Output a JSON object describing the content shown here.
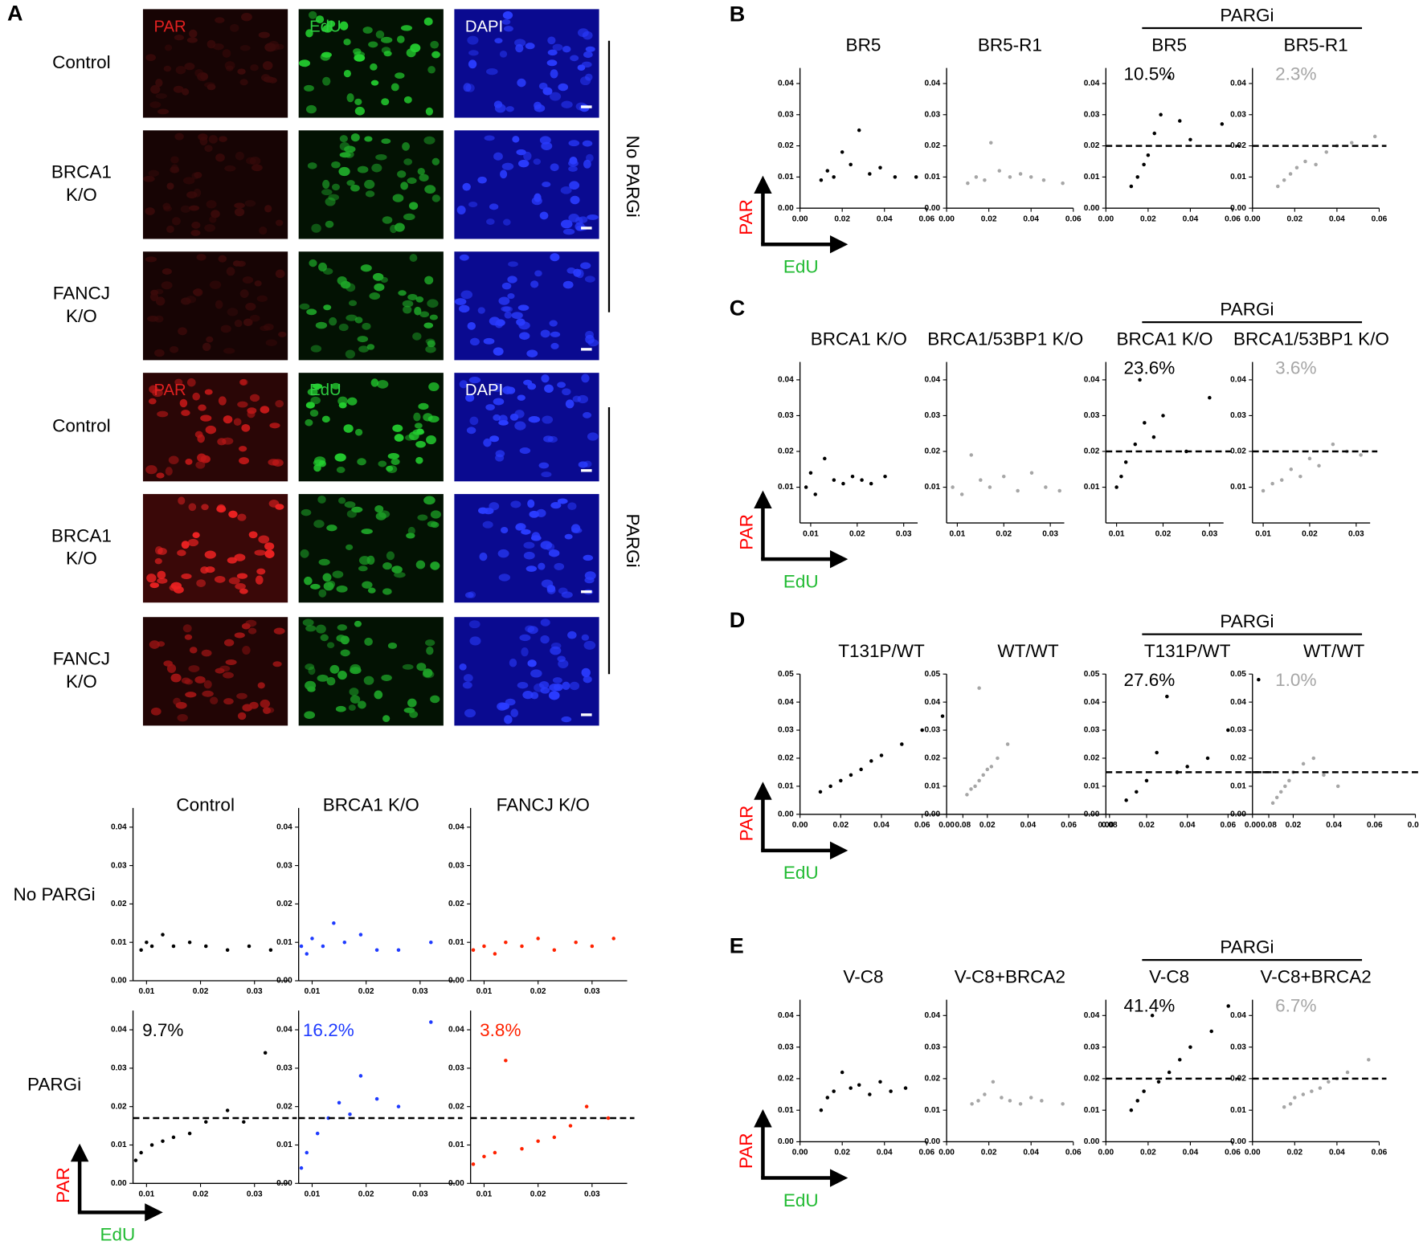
{
  "panel_a": {
    "label": "A",
    "channels": [
      "PAR",
      "EdU",
      "DAPI"
    ],
    "image_rows": [
      [
        "Control"
      ],
      [
        "BRCA1",
        "K/O"
      ],
      [
        "FANCJ",
        "K/O"
      ],
      [
        "Control"
      ],
      [
        "BRCA1",
        "K/O"
      ],
      [
        "FANCJ",
        "K/O"
      ]
    ],
    "groups": [
      "No PARGi",
      "PARGi"
    ],
    "scatter": {
      "column_titles": [
        "Control",
        "BRCA1 K/O",
        "FANCJ K/O"
      ],
      "row_labels": [
        "No PARGi",
        "PARGi"
      ],
      "y_axis_label": "PAR",
      "x_axis_label": "EdU",
      "xlim": [
        0.0075,
        0.0365
      ],
      "ylim": [
        0,
        0.045
      ],
      "xticks": [
        0.01,
        0.02,
        0.03
      ],
      "yticks": [
        {
          "value": 0,
          "label": "0.00"
        },
        0.01,
        0.02,
        0.03,
        0.04
      ],
      "plots": [
        {
          "type": "scatter",
          "color": "#000000",
          "x": [
            0.009,
            0.01,
            0.011,
            0.013,
            0.015,
            0.018,
            0.021,
            0.025,
            0.029,
            0.033
          ],
          "y": [
            0.008,
            0.01,
            0.009,
            0.012,
            0.009,
            0.01,
            0.009,
            0.008,
            0.009,
            0.008
          ]
        },
        {
          "type": "scatter",
          "color": "#1f3bff",
          "x": [
            0.008,
            0.009,
            0.01,
            0.012,
            0.014,
            0.016,
            0.019,
            0.022,
            0.026,
            0.032
          ],
          "y": [
            0.009,
            0.007,
            0.011,
            0.009,
            0.015,
            0.01,
            0.012,
            0.008,
            0.008,
            0.01
          ]
        },
        {
          "type": "scatter",
          "color": "#ff2200",
          "x": [
            0.008,
            0.01,
            0.012,
            0.014,
            0.017,
            0.02,
            0.023,
            0.027,
            0.03,
            0.034
          ],
          "y": [
            0.008,
            0.009,
            0.007,
            0.01,
            0.009,
            0.011,
            0.008,
            0.01,
            0.009,
            0.011
          ]
        },
        {
          "type": "scatter",
          "color": "#000000",
          "annotation": "9.7%",
          "threshold": 0.017,
          "x": [
            0.008,
            0.009,
            0.011,
            0.013,
            0.015,
            0.018,
            0.021,
            0.025,
            0.028,
            0.032
          ],
          "y": [
            0.006,
            0.008,
            0.01,
            0.011,
            0.012,
            0.013,
            0.016,
            0.019,
            0.016,
            0.034
          ]
        },
        {
          "type": "scatter",
          "color": "#1f3bff",
          "annotation": "16.2%",
          "threshold": 0.017,
          "x": [
            0.008,
            0.009,
            0.011,
            0.013,
            0.015,
            0.017,
            0.019,
            0.022,
            0.026,
            0.032
          ],
          "y": [
            0.004,
            0.008,
            0.013,
            0.017,
            0.021,
            0.018,
            0.028,
            0.022,
            0.02,
            0.042
          ]
        },
        {
          "type": "scatter",
          "color": "#ff2200",
          "annotation": "3.8%",
          "threshold": 0.017,
          "x": [
            0.008,
            0.01,
            0.012,
            0.014,
            0.017,
            0.02,
            0.023,
            0.026,
            0.029,
            0.033
          ],
          "y": [
            0.005,
            0.007,
            0.008,
            0.032,
            0.009,
            0.011,
            0.012,
            0.015,
            0.02,
            0.017
          ]
        }
      ]
    }
  },
  "panels": [
    {
      "label": "B",
      "group_label": "PARGi",
      "y_axis_label": "PAR",
      "x_axis_label": "EdU",
      "xlim": [
        0,
        0.06
      ],
      "ylim": [
        0,
        0.045
      ],
      "xticks": [
        {
          "value": 0,
          "label": "0.00"
        },
        0.02,
        0.04,
        0.06
      ],
      "yticks": [
        {
          "value": 0,
          "label": "0.00"
        },
        0.01,
        0.02,
        0.03,
        0.04
      ],
      "plots": [
        {
          "type": "scatter",
          "title": "BR5",
          "color": "#000000",
          "x": [
            0.01,
            0.013,
            0.016,
            0.02,
            0.024,
            0.028,
            0.033,
            0.038,
            0.045,
            0.055
          ],
          "y": [
            0.009,
            0.012,
            0.01,
            0.018,
            0.014,
            0.025,
            0.011,
            0.013,
            0.01,
            0.01
          ]
        },
        {
          "type": "scatter",
          "title": "BR5-R1",
          "color": "#a6a6a6",
          "x": [
            0.01,
            0.014,
            0.018,
            0.021,
            0.025,
            0.03,
            0.035,
            0.04,
            0.046,
            0.055
          ],
          "y": [
            0.008,
            0.01,
            0.009,
            0.021,
            0.012,
            0.01,
            0.011,
            0.01,
            0.009,
            0.008
          ]
        },
        {
          "type": "scatter",
          "title": "BR5",
          "color": "#000000",
          "annotation": "10.5%",
          "threshold": 0.02,
          "x": [
            0.012,
            0.015,
            0.018,
            0.02,
            0.023,
            0.026,
            0.03,
            0.035,
            0.04,
            0.055
          ],
          "y": [
            0.007,
            0.01,
            0.014,
            0.017,
            0.024,
            0.03,
            0.042,
            0.028,
            0.022,
            0.027
          ]
        },
        {
          "type": "scatter",
          "title": "BR5-R1",
          "color": "#a6a6a6",
          "annotation": "2.3%",
          "threshold": 0.02,
          "x": [
            0.012,
            0.015,
            0.018,
            0.021,
            0.025,
            0.03,
            0.035,
            0.04,
            0.047,
            0.058
          ],
          "y": [
            0.007,
            0.009,
            0.011,
            0.013,
            0.015,
            0.014,
            0.018,
            0.02,
            0.021,
            0.023
          ]
        }
      ]
    },
    {
      "label": "C",
      "group_label": "PARGi",
      "y_axis_label": "PAR",
      "x_axis_label": "EdU",
      "xlim": [
        0.0077,
        0.033
      ],
      "ylim": [
        0,
        0.045
      ],
      "xticks": [
        0.01,
        0.02,
        0.03
      ],
      "yticks": [
        0.01,
        0.02,
        0.03,
        0.04
      ],
      "plots": [
        {
          "type": "scatter",
          "title": "BRCA1 K/O",
          "color": "#000000",
          "x": [
            0.009,
            0.01,
            0.011,
            0.013,
            0.015,
            0.017,
            0.019,
            0.021,
            0.023,
            0.026
          ],
          "y": [
            0.01,
            0.014,
            0.008,
            0.018,
            0.012,
            0.011,
            0.013,
            0.012,
            0.011,
            0.013
          ]
        },
        {
          "type": "scatter",
          "title": "BRCA1/53BP1 K/O",
          "color": "#a6a6a6",
          "x": [
            0.009,
            0.011,
            0.013,
            0.015,
            0.017,
            0.02,
            0.023,
            0.026,
            0.029,
            0.032
          ],
          "y": [
            0.01,
            0.008,
            0.019,
            0.012,
            0.01,
            0.013,
            0.009,
            0.014,
            0.01,
            0.009
          ]
        },
        {
          "type": "scatter",
          "title": "BRCA1 K/O",
          "color": "#000000",
          "annotation": "23.6%",
          "threshold": 0.02,
          "x": [
            0.01,
            0.011,
            0.012,
            0.014,
            0.015,
            0.016,
            0.018,
            0.02,
            0.025,
            0.03
          ],
          "y": [
            0.01,
            0.013,
            0.017,
            0.022,
            0.04,
            0.028,
            0.024,
            0.03,
            0.02,
            0.035
          ]
        },
        {
          "type": "scatter",
          "title": "BRCA1/53BP1 K/O",
          "color": "#a6a6a6",
          "annotation": "3.6%",
          "threshold": 0.02,
          "x": [
            0.01,
            0.012,
            0.014,
            0.016,
            0.018,
            0.02,
            0.022,
            0.025,
            0.028,
            0.031
          ],
          "y": [
            0.009,
            0.011,
            0.012,
            0.015,
            0.013,
            0.018,
            0.016,
            0.022,
            0.02,
            0.019
          ]
        }
      ]
    },
    {
      "label": "D",
      "group_label": "PARGi",
      "y_axis_label": "PAR",
      "x_axis_label": "EdU",
      "xlim": [
        0,
        0.08
      ],
      "ylim": [
        0,
        0.05
      ],
      "xticks": [
        {
          "value": 0,
          "label": "0.00"
        },
        0.02,
        0.04,
        0.06,
        0.08
      ],
      "yticks": [
        {
          "value": 0,
          "label": "0.00"
        },
        0.01,
        0.02,
        0.03,
        0.04,
        0.05
      ],
      "plots": [
        {
          "type": "scatter",
          "title": "T131P/WT",
          "color": "#000000",
          "x": [
            0.01,
            0.015,
            0.02,
            0.025,
            0.03,
            0.035,
            0.04,
            0.05,
            0.06,
            0.07
          ],
          "y": [
            0.008,
            0.01,
            0.012,
            0.014,
            0.016,
            0.019,
            0.021,
            0.025,
            0.03,
            0.035
          ]
        },
        {
          "type": "scatter",
          "title": "WT/WT",
          "color": "#a6a6a6",
          "x": [
            0.01,
            0.012,
            0.014,
            0.016,
            0.018,
            0.02,
            0.022,
            0.025,
            0.03,
            0.016
          ],
          "y": [
            0.007,
            0.009,
            0.01,
            0.012,
            0.014,
            0.016,
            0.017,
            0.02,
            0.025,
            0.045
          ]
        },
        {
          "type": "scatter",
          "title": "T131P/WT",
          "color": "#000000",
          "annotation": "27.6%",
          "threshold": 0.015,
          "x": [
            0.01,
            0.015,
            0.02,
            0.025,
            0.03,
            0.035,
            0.04,
            0.05,
            0.06,
            0.075
          ],
          "y": [
            0.005,
            0.008,
            0.012,
            0.022,
            0.042,
            0.015,
            0.017,
            0.02,
            0.03,
            0.048
          ]
        },
        {
          "type": "scatter",
          "title": "WT/WT",
          "color": "#a6a6a6",
          "annotation": "1.0%",
          "threshold": 0.015,
          "x": [
            0.01,
            0.012,
            0.014,
            0.016,
            0.018,
            0.02,
            0.025,
            0.03,
            0.035,
            0.042
          ],
          "y": [
            0.004,
            0.006,
            0.008,
            0.01,
            0.012,
            0.015,
            0.018,
            0.02,
            0.014,
            0.01
          ]
        }
      ]
    },
    {
      "label": "E",
      "group_label": "PARGi",
      "y_axis_label": "PAR",
      "x_axis_label": "EdU",
      "xlim": [
        0,
        0.06
      ],
      "ylim": [
        0,
        0.045
      ],
      "xticks": [
        {
          "value": 0,
          "label": "0.00"
        },
        0.02,
        0.04,
        0.06
      ],
      "yticks": [
        {
          "value": 0,
          "label": "0.00"
        },
        0.01,
        0.02,
        0.03,
        0.04
      ],
      "plots": [
        {
          "type": "scatter",
          "title": "V-C8",
          "color": "#000000",
          "x": [
            0.01,
            0.013,
            0.016,
            0.02,
            0.024,
            0.028,
            0.033,
            0.038,
            0.043,
            0.05
          ],
          "y": [
            0.01,
            0.014,
            0.016,
            0.022,
            0.017,
            0.018,
            0.015,
            0.019,
            0.016,
            0.017
          ]
        },
        {
          "type": "scatter",
          "title": "V-C8+BRCA2",
          "color": "#a6a6a6",
          "x": [
            0.012,
            0.015,
            0.018,
            0.022,
            0.026,
            0.03,
            0.035,
            0.04,
            0.045,
            0.055
          ],
          "y": [
            0.012,
            0.013,
            0.015,
            0.019,
            0.014,
            0.013,
            0.012,
            0.014,
            0.013,
            0.012
          ]
        },
        {
          "type": "scatter",
          "title": "V-C8",
          "color": "#000000",
          "annotation": "41.4%",
          "threshold": 0.02,
          "x": [
            0.012,
            0.015,
            0.018,
            0.022,
            0.025,
            0.03,
            0.035,
            0.04,
            0.05,
            0.058
          ],
          "y": [
            0.01,
            0.013,
            0.016,
            0.04,
            0.019,
            0.022,
            0.026,
            0.03,
            0.035,
            0.043
          ]
        },
        {
          "type": "scatter",
          "title": "V-C8+BRCA2",
          "color": "#a6a6a6",
          "annotation": "6.7%",
          "threshold": 0.02,
          "x": [
            0.015,
            0.018,
            0.02,
            0.024,
            0.028,
            0.032,
            0.036,
            0.04,
            0.045,
            0.055
          ],
          "y": [
            0.011,
            0.012,
            0.014,
            0.015,
            0.016,
            0.017,
            0.019,
            0.02,
            0.022,
            0.026
          ]
        }
      ]
    }
  ]
}
